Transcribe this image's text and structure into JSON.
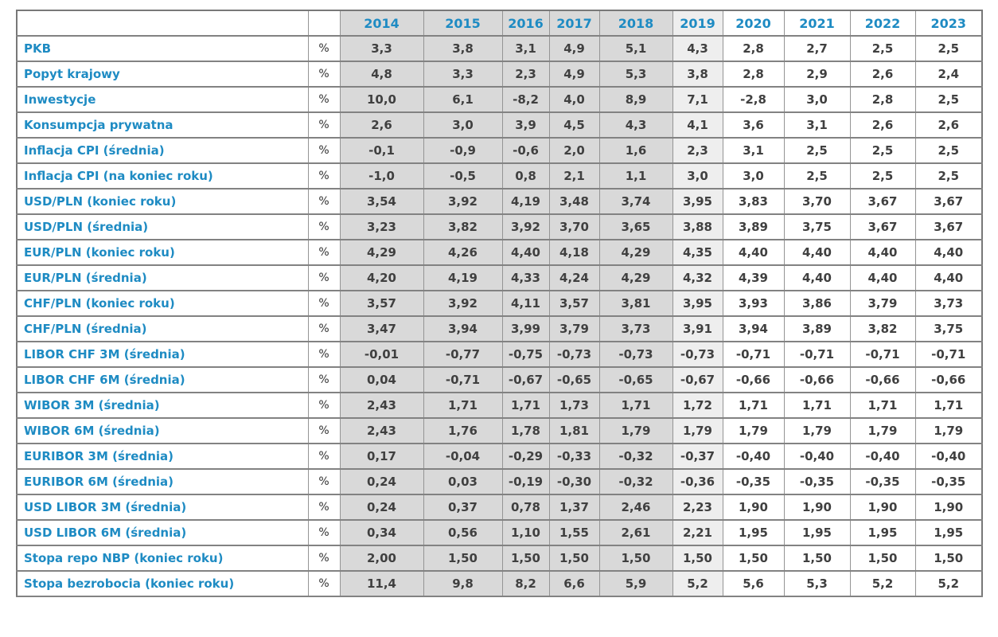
{
  "unit_symbol": "%",
  "chart_data": {
    "type": "table",
    "years": [
      "2014",
      "2015",
      "2016",
      "2017",
      "2018",
      "2019",
      "2020",
      "2021",
      "2022",
      "2023"
    ],
    "unit": "%",
    "rows": [
      {
        "label": "PKB",
        "values": [
          "3,3",
          "3,8",
          "3,1",
          "4,9",
          "5,1",
          "4,3",
          "2,8",
          "2,7",
          "2,5",
          "2,5"
        ]
      },
      {
        "label": "Popyt krajowy",
        "values": [
          "4,8",
          "3,3",
          "2,3",
          "4,9",
          "5,3",
          "3,8",
          "2,8",
          "2,9",
          "2,6",
          "2,4"
        ]
      },
      {
        "label": "Inwestycje",
        "values": [
          "10,0",
          "6,1",
          "-8,2",
          "4,0",
          "8,9",
          "7,1",
          "-2,8",
          "3,0",
          "2,8",
          "2,5"
        ]
      },
      {
        "label": "Konsumpcja prywatna",
        "values": [
          "2,6",
          "3,0",
          "3,9",
          "4,5",
          "4,3",
          "4,1",
          "3,6",
          "3,1",
          "2,6",
          "2,6"
        ]
      },
      {
        "label": "Inflacja CPI (średnia)",
        "values": [
          "-0,1",
          "-0,9",
          "-0,6",
          "2,0",
          "1,6",
          "2,3",
          "3,1",
          "2,5",
          "2,5",
          "2,5"
        ]
      },
      {
        "label": "Inflacja CPI (na koniec roku)",
        "values": [
          "-1,0",
          "-0,5",
          "0,8",
          "2,1",
          "1,1",
          "3,0",
          "3,0",
          "2,5",
          "2,5",
          "2,5"
        ]
      },
      {
        "label": "USD/PLN (koniec roku)",
        "values": [
          "3,54",
          "3,92",
          "4,19",
          "3,48",
          "3,74",
          "3,95",
          "3,83",
          "3,70",
          "3,67",
          "3,67"
        ]
      },
      {
        "label": "USD/PLN (średnia)",
        "values": [
          "3,23",
          "3,82",
          "3,92",
          "3,70",
          "3,65",
          "3,88",
          "3,89",
          "3,75",
          "3,67",
          "3,67"
        ]
      },
      {
        "label": "EUR/PLN (koniec roku)",
        "values": [
          "4,29",
          "4,26",
          "4,40",
          "4,18",
          "4,29",
          "4,35",
          "4,40",
          "4,40",
          "4,40",
          "4,40"
        ]
      },
      {
        "label": "EUR/PLN (średnia)",
        "values": [
          "4,20",
          "4,19",
          "4,33",
          "4,24",
          "4,29",
          "4,32",
          "4,39",
          "4,40",
          "4,40",
          "4,40"
        ]
      },
      {
        "label": "CHF/PLN (koniec roku)",
        "values": [
          "3,57",
          "3,92",
          "4,11",
          "3,57",
          "3,81",
          "3,95",
          "3,93",
          "3,86",
          "3,79",
          "3,73"
        ]
      },
      {
        "label": "CHF/PLN (średnia)",
        "values": [
          "3,47",
          "3,94",
          "3,99",
          "3,79",
          "3,73",
          "3,91",
          "3,94",
          "3,89",
          "3,82",
          "3,75"
        ]
      },
      {
        "label": "LIBOR CHF 3M (średnia)",
        "values": [
          "-0,01",
          "-0,77",
          "-0,75",
          "-0,73",
          "-0,73",
          "-0,73",
          "-0,71",
          "-0,71",
          "-0,71",
          "-0,71"
        ]
      },
      {
        "label": "LIBOR CHF 6M (średnia)",
        "values": [
          "0,04",
          "-0,71",
          "-0,67",
          "-0,65",
          "-0,65",
          "-0,67",
          "-0,66",
          "-0,66",
          "-0,66",
          "-0,66"
        ]
      },
      {
        "label": "WIBOR 3M (średnia)",
        "values": [
          "2,43",
          "1,71",
          "1,71",
          "1,73",
          "1,71",
          "1,72",
          "1,71",
          "1,71",
          "1,71",
          "1,71"
        ]
      },
      {
        "label": "WIBOR 6M (średnia)",
        "values": [
          "2,43",
          "1,76",
          "1,78",
          "1,81",
          "1,79",
          "1,79",
          "1,79",
          "1,79",
          "1,79",
          "1,79"
        ]
      },
      {
        "label": "EURIBOR 3M (średnia)",
        "values": [
          "0,17",
          "-0,04",
          "-0,29",
          "-0,33",
          "-0,32",
          "-0,37",
          "-0,40",
          "-0,40",
          "-0,40",
          "-0,40"
        ]
      },
      {
        "label": "EURIBOR 6M (średnia)",
        "values": [
          "0,24",
          "0,03",
          "-0,19",
          "-0,30",
          "-0,32",
          "-0,36",
          "-0,35",
          "-0,35",
          "-0,35",
          "-0,35"
        ]
      },
      {
        "label": "USD LIBOR 3M (średnia)",
        "values": [
          "0,24",
          "0,37",
          "0,78",
          "1,37",
          "2,46",
          "2,23",
          "1,90",
          "1,90",
          "1,90",
          "1,90"
        ]
      },
      {
        "label": "USD LIBOR 6M (średnia)",
        "values": [
          "0,34",
          "0,56",
          "1,10",
          "1,55",
          "2,61",
          "2,21",
          "1,95",
          "1,95",
          "1,95",
          "1,95"
        ]
      },
      {
        "label": "Stopa repo NBP (koniec roku)",
        "values": [
          "2,00",
          "1,50",
          "1,50",
          "1,50",
          "1,50",
          "1,50",
          "1,50",
          "1,50",
          "1,50",
          "1,50"
        ]
      },
      {
        "label": "Stopa bezrobocia (koniec roku)",
        "values": [
          "11,4",
          "9,8",
          "8,2",
          "6,6",
          "5,9",
          "5,2",
          "5,6",
          "5,3",
          "5,2",
          "5,2"
        ]
      }
    ]
  },
  "colors": {
    "accent_blue": "#1e8bc3",
    "value_text": "#404040",
    "column_shade_2014_2018": "#d9d9d9",
    "column_shade_2019": "#eeeeee",
    "grid_line": "#828282"
  }
}
